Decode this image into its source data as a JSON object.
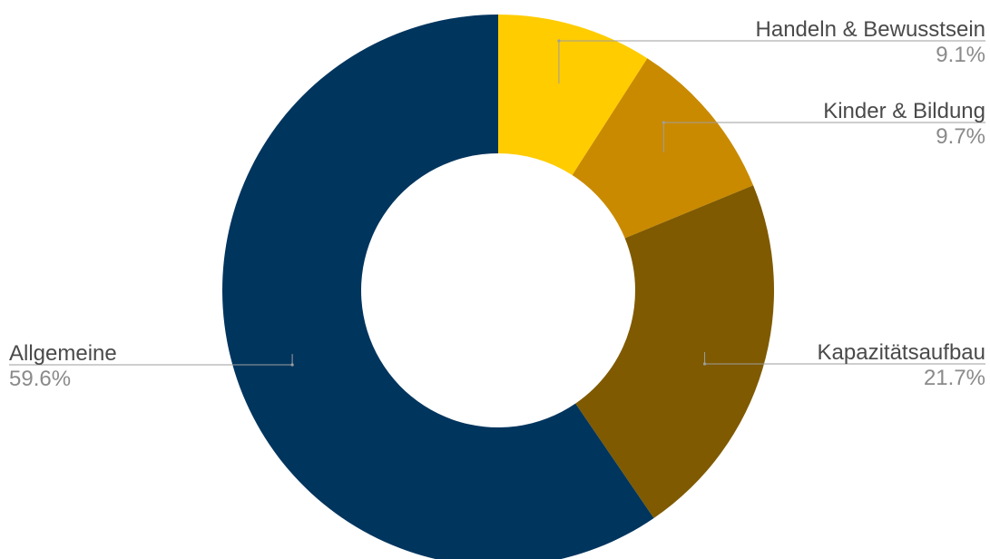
{
  "chart_data": {
    "type": "pie",
    "variant": "donut",
    "title": "",
    "start_angle_deg": 0,
    "direction": "clockwise",
    "slices": [
      {
        "label": "Handeln & Bewusstsein",
        "value": 9.1,
        "value_label": "9.1%",
        "color": "#FFCC00",
        "label_side": "right"
      },
      {
        "label": "Kinder & Bildung",
        "value": 9.7,
        "value_label": "9.7%",
        "color": "#C98A00",
        "label_side": "right"
      },
      {
        "label": "Kapazitätsaufbau",
        "value": 21.7,
        "value_label": "21.7%",
        "color": "#7F5A00",
        "label_side": "right"
      },
      {
        "label": "Allgemeine",
        "value": 59.6,
        "value_label": "59.6%",
        "color": "#00355E",
        "label_side": "left"
      }
    ],
    "legend": "none"
  }
}
